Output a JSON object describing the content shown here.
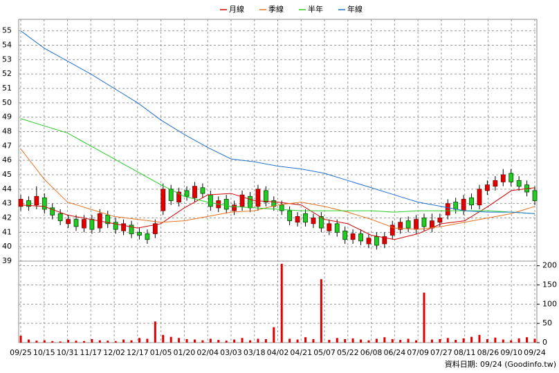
{
  "chart_data": [
    {
      "type": "candlestick",
      "up_color": "#e00000",
      "down_color": "#22cc22",
      "open": [
        42.8,
        43.2,
        42.9,
        43.4,
        42.7,
        42.3,
        41.6,
        41.9,
        41.3,
        41.9,
        41.3,
        42.2,
        41.7,
        41.1,
        41.5,
        41.0,
        40.9,
        40.9,
        42.5,
        44.0,
        43.1,
        43.9,
        43.4,
        44.1,
        43.6,
        42.7,
        43.3,
        42.5,
        42.8,
        43.5,
        42.8,
        43.9,
        43.2,
        42.9,
        42.5,
        41.7,
        42.3,
        41.6,
        42.1,
        41.1,
        41.6,
        41.1,
        40.5,
        40.9,
        40.2,
        40.7,
        40.2,
        40.8,
        41.2,
        41.8,
        41.2,
        42.0,
        41.3,
        41.7,
        42.2,
        43.1,
        42.5,
        43.4,
        42.9,
        43.9,
        44.2,
        44.5,
        45.1,
        44.6,
        44.3,
        43.9
      ],
      "high": [
        43.6,
        43.5,
        44.2,
        43.7,
        43.0,
        42.6,
        42.2,
        42.2,
        42.2,
        42.2,
        42.6,
        42.5,
        42.0,
        41.9,
        41.8,
        41.3,
        41.2,
        41.9,
        44.4,
        44.3,
        44.1,
        44.2,
        44.5,
        44.4,
        43.9,
        43.5,
        43.6,
        43.2,
        43.9,
        43.8,
        44.3,
        44.2,
        43.5,
        43.2,
        42.8,
        42.4,
        42.6,
        42.3,
        42.4,
        41.9,
        41.9,
        41.4,
        41.2,
        41.2,
        40.9,
        41.0,
        41.0,
        41.8,
        42.0,
        42.1,
        42.2,
        42.3,
        42.3,
        42.3,
        43.3,
        43.4,
        43.6,
        43.7,
        44.3,
        44.6,
        44.9,
        45.4,
        45.4,
        44.9,
        44.6,
        44.2
      ],
      "low": [
        42.5,
        42.5,
        42.6,
        42.3,
        41.9,
        41.5,
        41.3,
        41.1,
        41.0,
        40.9,
        41.0,
        41.3,
        40.9,
        40.8,
        40.6,
        40.5,
        40.2,
        40.6,
        42.2,
        42.9,
        42.8,
        43.2,
        43.1,
        43.4,
        42.5,
        42.4,
        42.3,
        42.2,
        42.5,
        42.4,
        42.5,
        42.8,
        42.5,
        42.2,
        41.5,
        41.4,
        41.4,
        41.3,
        41.0,
        40.8,
        40.7,
        40.2,
        40.2,
        40.1,
        39.9,
        39.8,
        39.9,
        40.5,
        40.9,
        41.0,
        40.9,
        41.1,
        41.0,
        41.4,
        41.9,
        42.3,
        42.2,
        42.6,
        42.6,
        43.6,
        43.9,
        44.2,
        44.2,
        43.9,
        43.5,
        42.9
      ],
      "close": [
        43.3,
        42.8,
        43.5,
        42.6,
        42.2,
        41.8,
        41.9,
        41.4,
        41.9,
        41.2,
        42.3,
        41.6,
        41.2,
        41.6,
        40.9,
        40.8,
        40.5,
        41.6,
        44.0,
        43.2,
        43.8,
        43.5,
        44.2,
        43.7,
        42.8,
        43.2,
        42.6,
        42.9,
        43.6,
        42.7,
        44.0,
        43.1,
        42.8,
        42.5,
        41.8,
        42.1,
        41.7,
        42.0,
        41.3,
        41.6,
        41.0,
        40.5,
        40.9,
        40.4,
        40.6,
        40.1,
        40.7,
        41.5,
        41.7,
        41.3,
        41.9,
        41.4,
        41.8,
        42.0,
        43.0,
        42.6,
        43.3,
        42.9,
        44.0,
        44.3,
        44.6,
        45.0,
        44.5,
        44.2,
        43.8,
        43.2
      ],
      "series": [
        {
          "name": "月線",
          "color": "#d00000",
          "values": [
            42.9,
            42.8,
            42.2,
            41.9,
            41.6,
            41.3,
            41.6,
            42.7,
            43.6,
            43.7,
            43.2,
            43.1,
            42.9,
            41.9,
            41.6,
            40.8,
            40.5,
            40.9,
            41.6,
            41.8,
            42.8,
            43.9,
            44.1
          ]
        },
        {
          "name": "季線",
          "color": "#e87020",
          "values": [
            46.8,
            44.7,
            43.1,
            42.6,
            42.1,
            41.9,
            41.7,
            41.8,
            42.1,
            42.4,
            42.5,
            42.9,
            43.1,
            42.8,
            42.4,
            41.9,
            41.3,
            41.2,
            41.4,
            41.7,
            42.0,
            42.3,
            42.8
          ]
        },
        {
          "name": "半年",
          "color": "#22cc22",
          "values": [
            48.9,
            48.4,
            47.9,
            47.0,
            46.1,
            45.2,
            44.3,
            43.5,
            43.1,
            42.8,
            42.7,
            42.6,
            42.5,
            42.5,
            42.5,
            42.5,
            42.4,
            42.5,
            42.5,
            42.5,
            42.5,
            42.4,
            42.3
          ]
        },
        {
          "name": "年線",
          "color": "#1f6fd0",
          "values": [
            55.0,
            53.8,
            52.9,
            52.0,
            51.0,
            50.0,
            48.8,
            47.8,
            46.9,
            46.1,
            45.9,
            45.6,
            45.4,
            45.1,
            44.6,
            44.1,
            43.6,
            43.1,
            42.8,
            42.5,
            42.4,
            42.4,
            42.3
          ]
        }
      ],
      "ylim": [
        39,
        55.8
      ],
      "yticks": [
        39,
        40,
        41,
        42,
        43,
        44,
        45,
        46,
        47,
        48,
        49,
        50,
        51,
        52,
        53,
        54,
        55
      ],
      "grid": true
    },
    {
      "type": "bar",
      "color": "#e00000",
      "values": [
        18,
        8,
        5,
        6,
        4,
        3,
        7,
        5,
        4,
        9,
        6,
        5,
        4,
        8,
        6,
        12,
        10,
        55,
        20,
        15,
        12,
        9,
        8,
        6,
        10,
        7,
        5,
        8,
        12,
        6,
        10,
        9,
        40,
        205,
        10,
        8,
        14,
        9,
        165,
        7,
        12,
        9,
        11,
        8,
        6,
        10,
        14,
        9,
        7,
        10,
        6,
        130,
        8,
        9,
        12,
        7,
        11,
        15,
        20,
        9,
        13,
        8,
        6,
        11,
        14,
        10
      ],
      "ylim": [
        0,
        212
      ],
      "yticks": [
        0,
        50,
        100,
        150,
        200
      ],
      "grid": true,
      "xticks": [
        "09/25",
        "10/15",
        "10/31",
        "11/17",
        "12/02",
        "12/17",
        "01/05",
        "01/20",
        "02/04",
        "03/03",
        "03/18",
        "04/02",
        "04/21",
        "05/07",
        "05/22",
        "06/08",
        "06/24",
        "07/09",
        "07/27",
        "08/11",
        "08/26",
        "09/10",
        "09/24"
      ],
      "footnote": "資料日期: 09/24 (Goodinfo.tw)"
    }
  ]
}
